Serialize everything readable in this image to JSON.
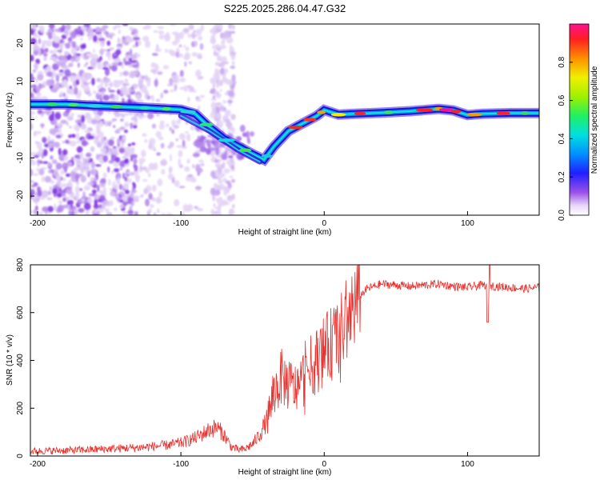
{
  "title": "S225.2025.286.04.47.G32",
  "chart_data": [
    {
      "type": "heatmap",
      "name": "spectrogram",
      "xlabel": "Height of straight line (km)",
      "ylabel": "Frequency (Hz)",
      "xlim": [
        -205,
        150
      ],
      "ylim": [
        -25,
        25
      ],
      "xticks": [
        -200,
        -100,
        0,
        100
      ],
      "yticks": [
        -20,
        -10,
        0,
        10,
        20
      ],
      "colorbar": {
        "label": "Normalized spectral amplitude",
        "range": [
          0,
          1
        ],
        "ticks": [
          "0.0",
          "0.2",
          "0.4",
          "0.6",
          "0.8"
        ]
      },
      "ridge": {
        "x": [
          -200,
          -180,
          -160,
          -140,
          -120,
          -100,
          -90,
          -80,
          -70,
          -60,
          -50,
          -42,
          -35,
          -25,
          -15,
          -5,
          0,
          10,
          20,
          40,
          60,
          80,
          90,
          100,
          110,
          130,
          150
        ],
        "freq": [
          4,
          4,
          3.6,
          3.3,
          3,
          2.6,
          1.5,
          -2,
          -5,
          -7,
          -9,
          -10.5,
          -7,
          -3,
          -1,
          1,
          2.5,
          1.3,
          1.5,
          1.8,
          2.2,
          2.8,
          2.4,
          1.2,
          1.5,
          1.7,
          1.7
        ]
      }
    },
    {
      "type": "line",
      "name": "snr",
      "xlabel": "Height of straight line (km)",
      "ylabel": "SNR (10 * v/v)",
      "xlim": [
        -205,
        150
      ],
      "ylim": [
        0,
        800
      ],
      "xticks": [
        -200,
        -100,
        0,
        100
      ],
      "yticks": [
        0,
        200,
        400,
        600,
        800
      ],
      "series": [
        {
          "name": "SNR",
          "color": "#e8322e",
          "x": [
            -205,
            -190,
            -170,
            -150,
            -130,
            -110,
            -100,
            -90,
            -80,
            -75,
            -70,
            -65,
            -60,
            -55,
            -50,
            -45,
            -40,
            -35,
            -30,
            -25,
            -20,
            -15,
            -10,
            -5,
            0,
            5,
            10,
            15,
            20,
            25,
            30,
            40,
            50,
            60,
            70,
            80,
            90,
            100,
            110,
            120,
            130,
            140,
            150
          ],
          "y": [
            20,
            22,
            25,
            30,
            35,
            45,
            55,
            75,
            110,
            120,
            90,
            40,
            25,
            30,
            50,
            90,
            150,
            260,
            330,
            300,
            280,
            320,
            370,
            400,
            440,
            470,
            500,
            550,
            620,
            670,
            700,
            720,
            715,
            710,
            715,
            720,
            710,
            705,
            715,
            710,
            705,
            700,
            705
          ]
        }
      ]
    }
  ]
}
